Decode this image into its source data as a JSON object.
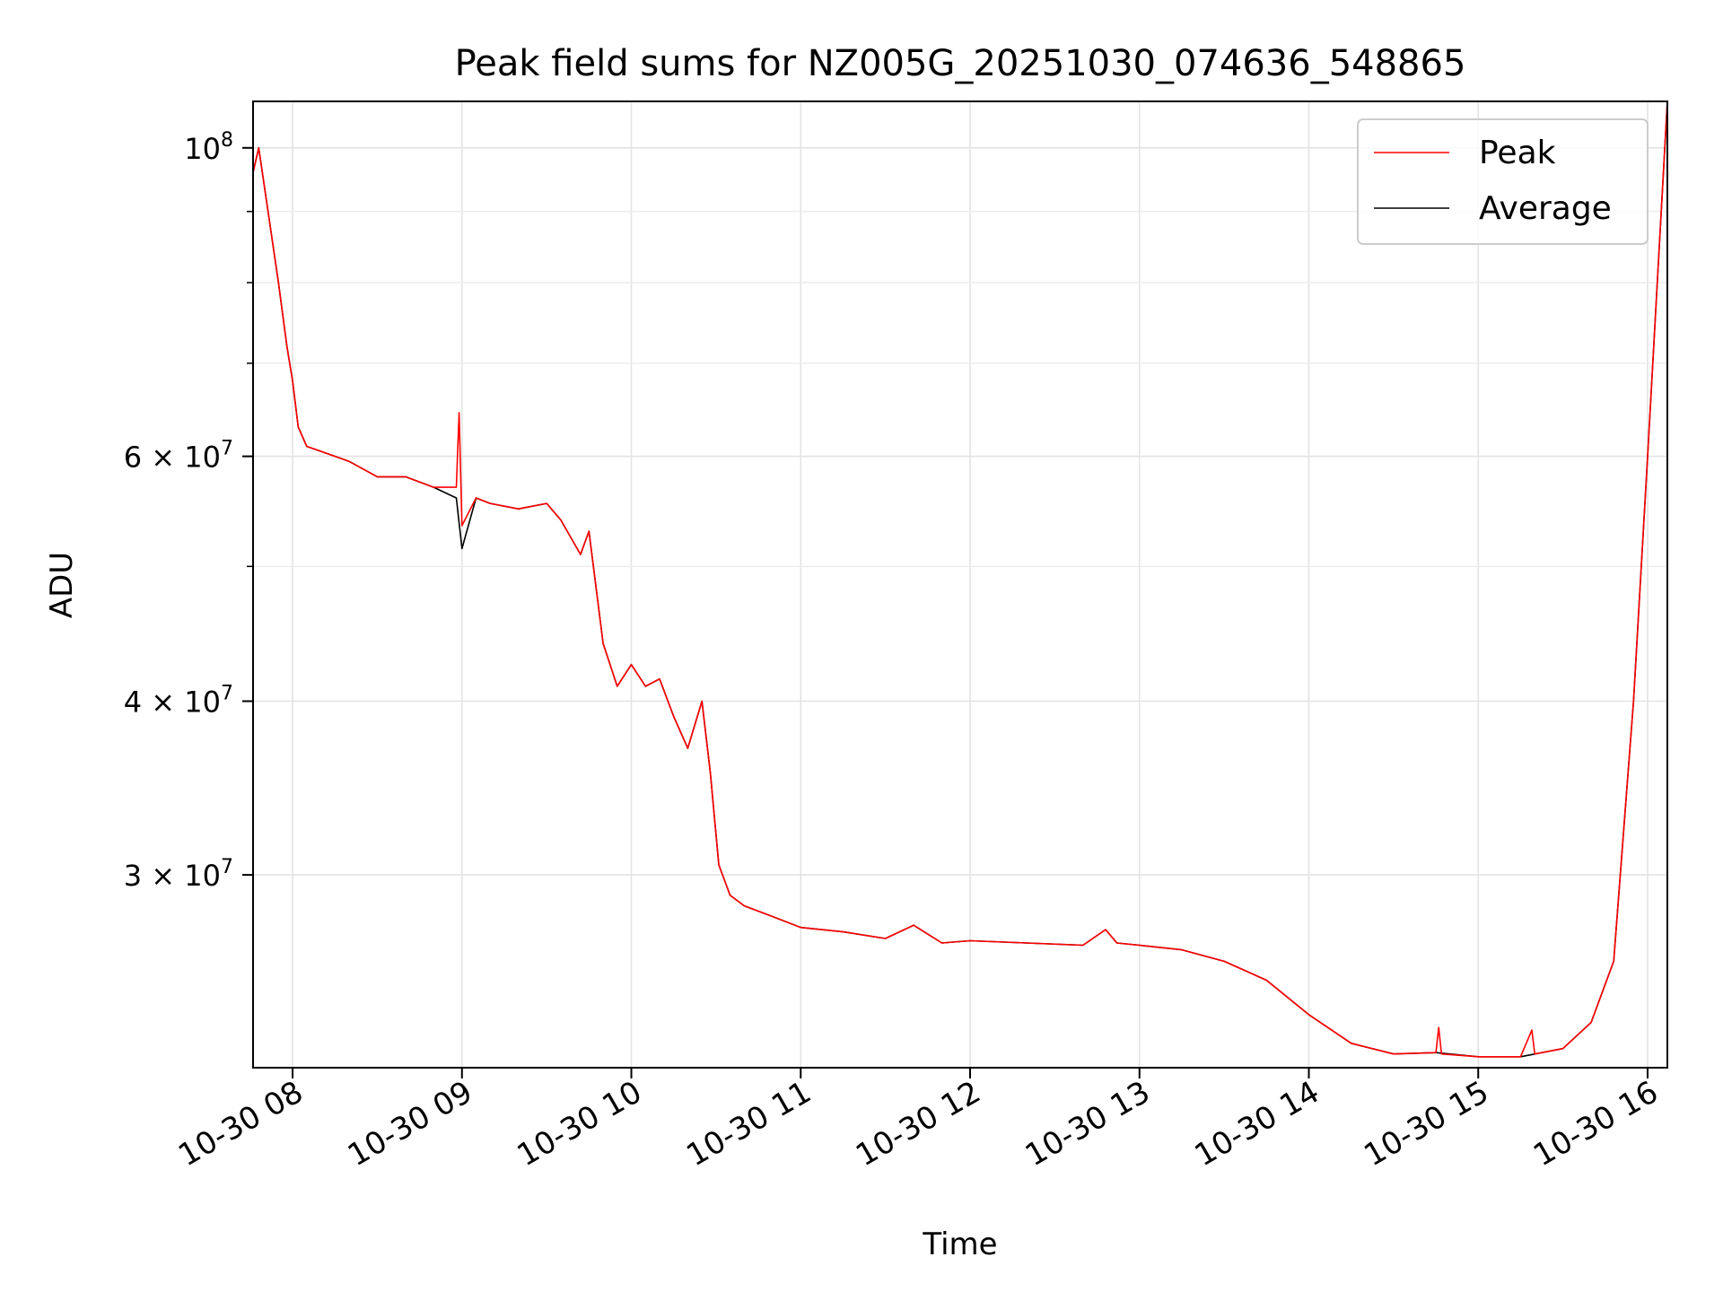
{
  "chart_data": {
    "type": "line",
    "title": "Peak field sums for NZ005G_20251030_074636_548865",
    "xlabel": "Time",
    "ylabel": "ADU",
    "y_scale": "log",
    "grid": true,
    "legend_position": "top-right",
    "xlim": [
      "2025-10-30 07:46",
      "2025-10-30 16:07"
    ],
    "ylim": [
      21800000,
      108000000
    ],
    "x_ticks": [
      "10-30 08",
      "10-30 09",
      "10-30 10",
      "10-30 11",
      "10-30 12",
      "10-30 13",
      "10-30 14",
      "10-30 15",
      "10-30 16"
    ],
    "x_tick_hours": [
      8,
      9,
      10,
      11,
      12,
      13,
      14,
      15,
      16
    ],
    "y_ticks": [
      {
        "value": 100000000,
        "mantissa": "",
        "base": "10",
        "exp": "8"
      },
      {
        "value": 60000000,
        "mantissa": "6",
        "base": "10",
        "exp": "7"
      },
      {
        "value": 40000000,
        "mantissa": "4",
        "base": "10",
        "exp": "7"
      },
      {
        "value": 30000000,
        "mantissa": "3",
        "base": "10",
        "exp": "7"
      }
    ],
    "y_minor_ticks": [
      50000000,
      70000000,
      80000000,
      90000000
    ],
    "series": [
      {
        "name": "Peak",
        "color": "#ff0000",
        "points": [
          {
            "t": "07:46",
            "y": 96000000
          },
          {
            "t": "07:48",
            "y": 100000000
          },
          {
            "t": "07:52",
            "y": 88000000
          },
          {
            "t": "07:55",
            "y": 80000000
          },
          {
            "t": "07:58",
            "y": 72000000
          },
          {
            "t": "08:00",
            "y": 68000000
          },
          {
            "t": "08:02",
            "y": 63000000
          },
          {
            "t": "08:05",
            "y": 61000000
          },
          {
            "t": "08:10",
            "y": 60500000
          },
          {
            "t": "08:20",
            "y": 59500000
          },
          {
            "t": "08:30",
            "y": 58000000
          },
          {
            "t": "08:40",
            "y": 58000000
          },
          {
            "t": "08:50",
            "y": 57000000
          },
          {
            "t": "08:58",
            "y": 57000000
          },
          {
            "t": "08:59",
            "y": 64500000
          },
          {
            "t": "09:00",
            "y": 53500000
          },
          {
            "t": "09:05",
            "y": 56000000
          },
          {
            "t": "09:10",
            "y": 55500000
          },
          {
            "t": "09:20",
            "y": 55000000
          },
          {
            "t": "09:30",
            "y": 55500000
          },
          {
            "t": "09:35",
            "y": 54000000
          },
          {
            "t": "09:42",
            "y": 51000000
          },
          {
            "t": "09:45",
            "y": 53000000
          },
          {
            "t": "09:50",
            "y": 44000000
          },
          {
            "t": "09:55",
            "y": 41000000
          },
          {
            "t": "10:00",
            "y": 42500000
          },
          {
            "t": "10:05",
            "y": 41000000
          },
          {
            "t": "10:10",
            "y": 41500000
          },
          {
            "t": "10:15",
            "y": 39000000
          },
          {
            "t": "10:20",
            "y": 37000000
          },
          {
            "t": "10:25",
            "y": 40000000
          },
          {
            "t": "10:28",
            "y": 35500000
          },
          {
            "t": "10:31",
            "y": 30500000
          },
          {
            "t": "10:35",
            "y": 29000000
          },
          {
            "t": "10:40",
            "y": 28500000
          },
          {
            "t": "10:50",
            "y": 28000000
          },
          {
            "t": "11:00",
            "y": 27500000
          },
          {
            "t": "11:15",
            "y": 27300000
          },
          {
            "t": "11:30",
            "y": 27000000
          },
          {
            "t": "11:40",
            "y": 27600000
          },
          {
            "t": "11:50",
            "y": 26800000
          },
          {
            "t": "12:00",
            "y": 26900000
          },
          {
            "t": "12:20",
            "y": 26800000
          },
          {
            "t": "12:40",
            "y": 26700000
          },
          {
            "t": "12:48",
            "y": 27400000
          },
          {
            "t": "12:52",
            "y": 26800000
          },
          {
            "t": "13:00",
            "y": 26700000
          },
          {
            "t": "13:15",
            "y": 26500000
          },
          {
            "t": "13:30",
            "y": 26000000
          },
          {
            "t": "13:45",
            "y": 25200000
          },
          {
            "t": "14:00",
            "y": 23800000
          },
          {
            "t": "14:15",
            "y": 22700000
          },
          {
            "t": "14:30",
            "y": 22300000
          },
          {
            "t": "14:45",
            "y": 22350000
          },
          {
            "t": "14:46",
            "y": 23300000
          },
          {
            "t": "14:47",
            "y": 22300000
          },
          {
            "t": "15:00",
            "y": 22200000
          },
          {
            "t": "15:15",
            "y": 22200000
          },
          {
            "t": "15:19",
            "y": 23200000
          },
          {
            "t": "15:20",
            "y": 22300000
          },
          {
            "t": "15:30",
            "y": 22500000
          },
          {
            "t": "15:40",
            "y": 23500000
          },
          {
            "t": "15:48",
            "y": 26000000
          },
          {
            "t": "15:55",
            "y": 40000000
          },
          {
            "t": "16:00",
            "y": 60000000
          },
          {
            "t": "16:07",
            "y": 108000000
          }
        ]
      },
      {
        "name": "Average",
        "color": "#000000",
        "points": [
          {
            "t": "07:46",
            "y": 96000000
          },
          {
            "t": "07:48",
            "y": 100000000
          },
          {
            "t": "07:52",
            "y": 88000000
          },
          {
            "t": "07:55",
            "y": 80000000
          },
          {
            "t": "07:58",
            "y": 72000000
          },
          {
            "t": "08:00",
            "y": 68000000
          },
          {
            "t": "08:02",
            "y": 63000000
          },
          {
            "t": "08:05",
            "y": 61000000
          },
          {
            "t": "08:10",
            "y": 60500000
          },
          {
            "t": "08:20",
            "y": 59500000
          },
          {
            "t": "08:30",
            "y": 58000000
          },
          {
            "t": "08:40",
            "y": 58000000
          },
          {
            "t": "08:50",
            "y": 57000000
          },
          {
            "t": "08:58",
            "y": 56000000
          },
          {
            "t": "09:00",
            "y": 51500000
          },
          {
            "t": "09:05",
            "y": 56000000
          },
          {
            "t": "09:10",
            "y": 55500000
          },
          {
            "t": "09:20",
            "y": 55000000
          },
          {
            "t": "09:30",
            "y": 55500000
          },
          {
            "t": "09:35",
            "y": 54000000
          },
          {
            "t": "09:42",
            "y": 51000000
          },
          {
            "t": "09:45",
            "y": 53000000
          },
          {
            "t": "09:50",
            "y": 44000000
          },
          {
            "t": "09:55",
            "y": 41000000
          },
          {
            "t": "10:00",
            "y": 42500000
          },
          {
            "t": "10:05",
            "y": 41000000
          },
          {
            "t": "10:10",
            "y": 41500000
          },
          {
            "t": "10:15",
            "y": 39000000
          },
          {
            "t": "10:20",
            "y": 37000000
          },
          {
            "t": "10:25",
            "y": 40000000
          },
          {
            "t": "10:28",
            "y": 35500000
          },
          {
            "t": "10:31",
            "y": 30500000
          },
          {
            "t": "10:35",
            "y": 29000000
          },
          {
            "t": "10:40",
            "y": 28500000
          },
          {
            "t": "10:50",
            "y": 28000000
          },
          {
            "t": "11:00",
            "y": 27500000
          },
          {
            "t": "11:15",
            "y": 27300000
          },
          {
            "t": "11:30",
            "y": 27000000
          },
          {
            "t": "11:40",
            "y": 27600000
          },
          {
            "t": "11:50",
            "y": 26800000
          },
          {
            "t": "12:00",
            "y": 26900000
          },
          {
            "t": "12:20",
            "y": 26800000
          },
          {
            "t": "12:40",
            "y": 26700000
          },
          {
            "t": "12:48",
            "y": 27400000
          },
          {
            "t": "12:52",
            "y": 26800000
          },
          {
            "t": "13:00",
            "y": 26700000
          },
          {
            "t": "13:15",
            "y": 26500000
          },
          {
            "t": "13:30",
            "y": 26000000
          },
          {
            "t": "13:45",
            "y": 25200000
          },
          {
            "t": "14:00",
            "y": 23800000
          },
          {
            "t": "14:15",
            "y": 22700000
          },
          {
            "t": "14:30",
            "y": 22300000
          },
          {
            "t": "14:45",
            "y": 22350000
          },
          {
            "t": "15:00",
            "y": 22200000
          },
          {
            "t": "15:15",
            "y": 22200000
          },
          {
            "t": "15:30",
            "y": 22500000
          },
          {
            "t": "15:40",
            "y": 23500000
          },
          {
            "t": "15:48",
            "y": 26000000
          },
          {
            "t": "15:55",
            "y": 40000000
          },
          {
            "t": "16:00",
            "y": 60000000
          },
          {
            "t": "16:07",
            "y": 108000000
          }
        ]
      }
    ]
  }
}
